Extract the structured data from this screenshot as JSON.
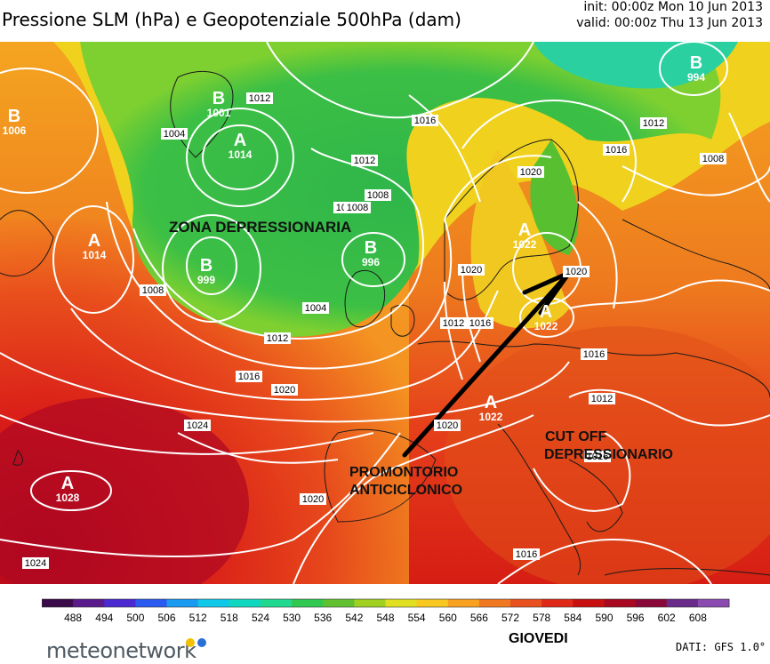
{
  "header": {
    "title": "Pressione SLM (hPa) e Geopotenziale 500hPa (dam)",
    "init": "init: 00:00z Mon 10 Jun 2013",
    "valid": "valid: 00:00z Thu 13 Jun 2013"
  },
  "map": {
    "pressure_centers": [
      {
        "symbol": "B",
        "value": "1006"
      },
      {
        "symbol": "A",
        "value": "1014"
      },
      {
        "symbol": "B",
        "value": "999"
      },
      {
        "symbol": "B",
        "value": "996"
      },
      {
        "symbol": "A",
        "value": "1014"
      },
      {
        "symbol": "B",
        "value": "1001"
      },
      {
        "symbol": "B",
        "value": "994"
      },
      {
        "symbol": "A",
        "value": "1022"
      },
      {
        "symbol": "A",
        "value": "1022"
      },
      {
        "symbol": "A",
        "value": "1022"
      },
      {
        "symbol": "A",
        "value": "1028"
      }
    ],
    "isobar_labels": [
      "1004",
      "1012",
      "1012",
      "1016",
      "1016",
      "1012",
      "1008",
      "1008",
      "1008",
      "1004",
      "1008",
      "1012",
      "1016",
      "1016",
      "1020",
      "1024",
      "1024",
      "1020",
      "1020",
      "1020",
      "1012",
      "1016",
      "1012",
      "1020",
      "1020",
      "1016",
      "1016",
      "1008"
    ],
    "annotations": {
      "zona": "ZONA DEPRESSIONARIA",
      "promontorio_1": "PROMONTORIO",
      "promontorio_2": "ANTICICLONICO",
      "cutoff_1": "CUT OFF",
      "cutoff_2": "DEPRESSIONARIO"
    }
  },
  "legend": {
    "ticks": [
      "488",
      "494",
      "500",
      "506",
      "512",
      "518",
      "524",
      "530",
      "536",
      "542",
      "548",
      "554",
      "560",
      "566",
      "572",
      "578",
      "584",
      "590",
      "596",
      "602",
      "608"
    ],
    "colors": [
      "#3a0a4a",
      "#5a1a8c",
      "#4a2ad0",
      "#2a5af0",
      "#1a9af0",
      "#10c8e8",
      "#10d8c0",
      "#20d890",
      "#30c850",
      "#60c030",
      "#a0d020",
      "#e0e020",
      "#f8c820",
      "#f8a020",
      "#f07820",
      "#e85020",
      "#e02818",
      "#c81010",
      "#a80820",
      "#8a0838",
      "#6a2a8a",
      "#8a4ab0"
    ]
  },
  "footer": {
    "day": "GIOVEDI",
    "source": "DATI: GFS 1.0°",
    "logo": "meteonetwork",
    "logo_dot_colors": [
      "#f2c200",
      "#2a6fd6"
    ]
  }
}
